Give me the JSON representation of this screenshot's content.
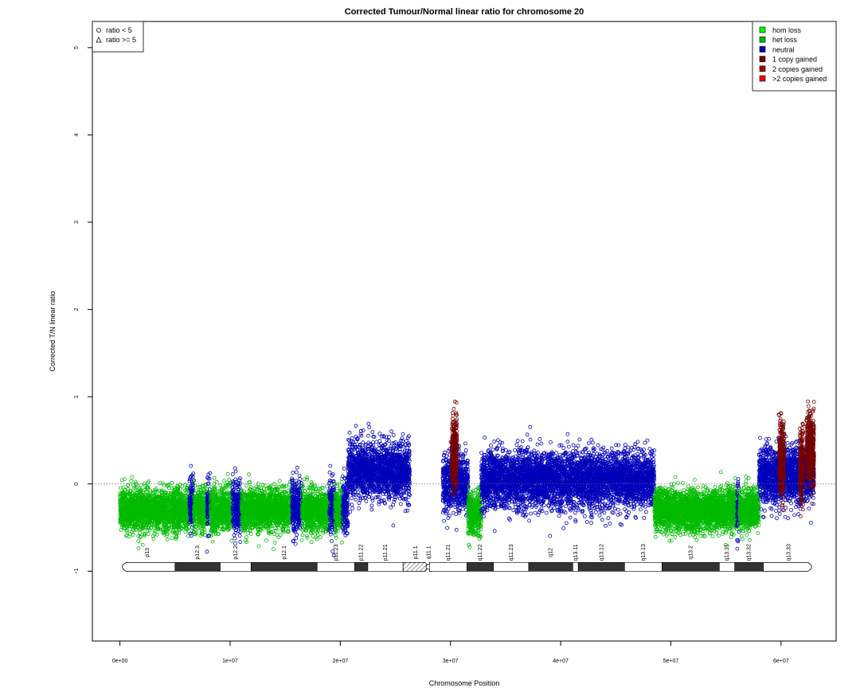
{
  "chart_data": {
    "type": "scatter",
    "title": "Corrected Tumour/Normal linear ratio for chromosome  20",
    "xlabel": "Chromosome Position",
    "ylabel": "Corrected T/N linear ratio",
    "xlim": [
      -2500000,
      65000000
    ],
    "ylim": [
      -1.8,
      5.3
    ],
    "x_ticks": [
      0,
      10000000,
      20000000,
      30000000,
      40000000,
      50000000,
      60000000
    ],
    "x_tick_labels": [
      "0e+00",
      "1e+07",
      "2e+07",
      "3e+07",
      "4e+07",
      "5e+07",
      "6e+07"
    ],
    "y_ticks": [
      -1,
      0,
      1,
      2,
      3,
      4,
      5
    ],
    "y_tick_labels": [
      "−1",
      "0",
      "1",
      "2",
      "3",
      "4",
      "5"
    ],
    "reference_line": 0,
    "shape_legend": {
      "position": "top-left",
      "entries": [
        {
          "label": "ratio < 5",
          "shape": "circle"
        },
        {
          "label": "ratio >= 5",
          "shape": "triangle"
        }
      ]
    },
    "state_legend": {
      "position": "top-right",
      "entries": [
        {
          "label": "hom loss",
          "color": "#00ff00"
        },
        {
          "label": "het loss",
          "color": "#00bb00"
        },
        {
          "label": "neutral",
          "color": "#0000bb"
        },
        {
          "label": "1 copy gained",
          "color": "#770000"
        },
        {
          "label": "2 copies gained",
          "color": "#aa0000"
        },
        {
          "label": ">2 copies gained",
          "color": "#ff0000"
        }
      ]
    },
    "segments": [
      {
        "start": 0,
        "end": 6300000,
        "state": "het loss",
        "mean": -0.3
      },
      {
        "start": 6300000,
        "end": 6700000,
        "state": "neutral",
        "mean": -0.25
      },
      {
        "start": 6700000,
        "end": 7900000,
        "state": "het loss",
        "mean": -0.3
      },
      {
        "start": 7900000,
        "end": 8200000,
        "state": "neutral",
        "mean": -0.25
      },
      {
        "start": 8200000,
        "end": 10200000,
        "state": "het loss",
        "mean": -0.3
      },
      {
        "start": 10200000,
        "end": 11000000,
        "state": "neutral",
        "mean": -0.25
      },
      {
        "start": 11000000,
        "end": 15600000,
        "state": "het loss",
        "mean": -0.3
      },
      {
        "start": 15600000,
        "end": 16500000,
        "state": "neutral",
        "mean": -0.25
      },
      {
        "start": 16500000,
        "end": 19000000,
        "state": "het loss",
        "mean": -0.3
      },
      {
        "start": 19000000,
        "end": 19500000,
        "state": "neutral",
        "mean": -0.25
      },
      {
        "start": 19500000,
        "end": 20200000,
        "state": "het loss",
        "mean": -0.3
      },
      {
        "start": 20200000,
        "end": 20700000,
        "state": "neutral",
        "mean": -0.25
      },
      {
        "start": 20700000,
        "end": 26300000,
        "state": "neutral",
        "mean": 0.15
      },
      {
        "start": 29300000,
        "end": 31600000,
        "state": "neutral",
        "mean": 0.02
      },
      {
        "start": 31600000,
        "end": 32800000,
        "state": "het loss",
        "mean": -0.35
      },
      {
        "start": 32800000,
        "end": 48500000,
        "state": "neutral",
        "mean": 0.05
      },
      {
        "start": 48500000,
        "end": 56000000,
        "state": "het loss",
        "mean": -0.3
      },
      {
        "start": 56000000,
        "end": 56200000,
        "state": "neutral",
        "mean": -0.3
      },
      {
        "start": 56200000,
        "end": 58000000,
        "state": "het loss",
        "mean": -0.3
      },
      {
        "start": 58000000,
        "end": 63000000,
        "state": "neutral",
        "mean": 0.1
      }
    ],
    "gain_spikes": [
      {
        "start": 30100000,
        "end": 30600000,
        "state": "1 copy gained",
        "mean": 0.35
      },
      {
        "start": 59800000,
        "end": 60300000,
        "state": "1 copy gained",
        "mean": 0.3
      },
      {
        "start": 61700000,
        "end": 62000000,
        "state": "1 copy gained",
        "mean": 0.2
      },
      {
        "start": 62300000,
        "end": 63000000,
        "state": "1 copy gained",
        "mean": 0.4
      }
    ],
    "ideogram": {
      "y": -0.95,
      "centromere": 28000000,
      "bands": [
        {
          "name": "p13",
          "start": 0,
          "end": 5000000,
          "stain": "gneg"
        },
        {
          "name": "p12.3",
          "start": 5000000,
          "end": 9100000,
          "stain": "gpos"
        },
        {
          "name": "p12.2",
          "start": 9100000,
          "end": 11900000,
          "stain": "gneg"
        },
        {
          "name": "p12.1",
          "start": 11900000,
          "end": 17900000,
          "stain": "gpos"
        },
        {
          "name": "p11.23",
          "start": 17900000,
          "end": 21300000,
          "stain": "gneg"
        },
        {
          "name": "p11.22",
          "start": 21300000,
          "end": 22500000,
          "stain": "gpos"
        },
        {
          "name": "p11.21",
          "start": 22500000,
          "end": 25700000,
          "stain": "gneg"
        },
        {
          "name": "p11.1",
          "start": 25700000,
          "end": 28000000,
          "stain": "acen"
        },
        {
          "name": "q11.1",
          "start": 28000000,
          "end": 28100000,
          "stain": "acen"
        },
        {
          "name": "q11.21",
          "start": 28100000,
          "end": 31500000,
          "stain": "gneg"
        },
        {
          "name": "q11.22",
          "start": 31500000,
          "end": 33900000,
          "stain": "gpos"
        },
        {
          "name": "q11.23",
          "start": 33900000,
          "end": 37100000,
          "stain": "gneg"
        },
        {
          "name": "q12",
          "start": 37100000,
          "end": 41100000,
          "stain": "gpos"
        },
        {
          "name": "q13.11",
          "start": 41100000,
          "end": 41600000,
          "stain": "gneg"
        },
        {
          "name": "q13.12",
          "start": 41600000,
          "end": 45800000,
          "stain": "gpos"
        },
        {
          "name": "q13.13",
          "start": 45800000,
          "end": 49200000,
          "stain": "gneg"
        },
        {
          "name": "q13.2",
          "start": 49200000,
          "end": 54400000,
          "stain": "gpos"
        },
        {
          "name": "q13.31",
          "start": 54400000,
          "end": 55800000,
          "stain": "gneg"
        },
        {
          "name": "q13.32",
          "start": 55800000,
          "end": 58400000,
          "stain": "gpos"
        },
        {
          "name": "q13.33",
          "start": 58400000,
          "end": 63000000,
          "stain": "gneg"
        }
      ]
    }
  }
}
